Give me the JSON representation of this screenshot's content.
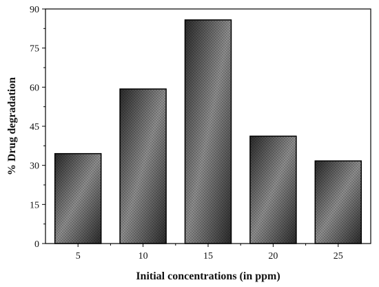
{
  "chart_data": {
    "type": "bar",
    "categories": [
      "5",
      "10",
      "15",
      "20",
      "25"
    ],
    "values": [
      34.5,
      59.3,
      85.8,
      41.2,
      31.7
    ],
    "xlabel": "Initial concentrations (in ppm)",
    "ylabel": "% Drug degradation",
    "ylim": [
      0,
      90
    ],
    "yticks": [
      "0",
      "15",
      "30",
      "45",
      "60",
      "75",
      "90"
    ],
    "grid": false,
    "legend": "none",
    "colors": {
      "bar_dark": "#2b2b2b",
      "bar_light": "#9a9a9a",
      "bar_stroke": "#000000"
    }
  }
}
